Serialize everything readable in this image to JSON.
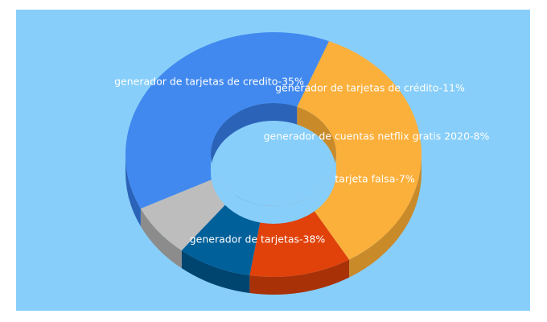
{
  "chart_data": {
    "type": "pie",
    "donut": true,
    "three_d": true,
    "background_color": "#87cefa",
    "slices": [
      {
        "label": "generador de tarjetas de credito-35%",
        "value": 35,
        "color": "#fbb03b",
        "side_color": "#c98a2a"
      },
      {
        "label": "generador de tarjetas de crédito-11%",
        "value": 11,
        "color": "#e0420a",
        "side_color": "#a83107"
      },
      {
        "label": "generador de cuentas netflix gratis 2020-8%",
        "value": 8,
        "color": "#00609a",
        "side_color": "#004470"
      },
      {
        "label": "tarjeta falsa-7%",
        "value": 7,
        "color": "#bdbdbd",
        "side_color": "#8c8c8c"
      },
      {
        "label": "generador de tarjetas-38%",
        "value": 38,
        "color": "#4189ef",
        "side_color": "#2b63b8"
      }
    ]
  }
}
